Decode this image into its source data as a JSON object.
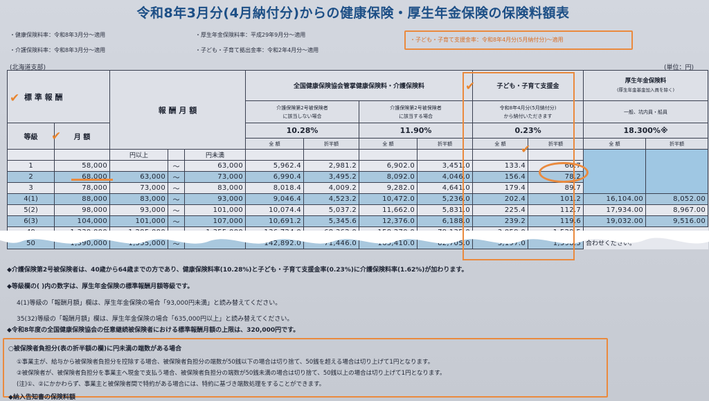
{
  "title": "令和8年3月分(4月納付分)からの健康保険・厚生年金保険の保険料額表",
  "rates": {
    "health": "・健康保険料率：令和8年3月分～適用",
    "care": "・介護保険料率：令和8年3月分～適用",
    "pension": "・厚生年金保険料率：平成29年9月分～適用",
    "childcontrib": "・子ども・子育て拠出金率：令和2年4月分～適用",
    "childsupport": "・子ども・子育て支援金率：令和8年4月分(5月納付分)～適用"
  },
  "branch": "(北海道支部)",
  "unit": "(単位：円)",
  "headers": {
    "standard": "標 準 報 酬",
    "grade": "等級",
    "monthly": "月 額",
    "remuneration": "報 酬 月 額",
    "health_group": "全国健康保険協会管掌健康保険料・介護保険料",
    "no_care_line1": "介護保険第2号被保険者",
    "no_care_line2": "に該当しない場合",
    "care_line1": "介護保険第2号被保険者",
    "care_line2": "に該当する場合",
    "rate_no_care": "10.28%",
    "rate_care": "11.90%",
    "child_group": "子ども・子育て支援金",
    "child_note1": "令和8年4月分(5月納付分)",
    "child_note2": "から納付いただきます",
    "rate_child": "0.23%",
    "pension_group": "厚生年金保険料",
    "pension_note": "(厚生年金基金加入員を除く)",
    "pension_sub": "一般、坑内員・船員",
    "rate_pension": "18.300%※",
    "full": "全 額",
    "half": "折半額",
    "yen_over": "円以上",
    "yen_under": "円未満",
    "tilde": "～"
  },
  "rows": [
    {
      "grade": "1",
      "monthly": "58,000",
      "lo": "",
      "hi": "63,000",
      "a": "5,962.4",
      "b": "2,981.2",
      "c": "6,902.0",
      "d": "3,451.0",
      "e": "133.4",
      "f": "66.7",
      "g": "",
      "h": ""
    },
    {
      "grade": "2",
      "monthly": "68,000",
      "lo": "63,000",
      "hi": "73,000",
      "a": "6,990.4",
      "b": "3,495.2",
      "c": "8,092.0",
      "d": "4,046.0",
      "e": "156.4",
      "f": "78.2",
      "g": "",
      "h": ""
    },
    {
      "grade": "3",
      "monthly": "78,000",
      "lo": "73,000",
      "hi": "83,000",
      "a": "8,018.4",
      "b": "4,009.2",
      "c": "9,282.0",
      "d": "4,641.0",
      "e": "179.4",
      "f": "89.7",
      "g": "",
      "h": ""
    },
    {
      "grade": "4(1)",
      "monthly": "88,000",
      "lo": "83,000",
      "hi": "93,000",
      "a": "9,046.4",
      "b": "4,523.2",
      "c": "10,472.0",
      "d": "5,236.0",
      "e": "202.4",
      "f": "101.2",
      "g": "16,104.00",
      "h": "8,052.00"
    },
    {
      "grade": "5(2)",
      "monthly": "98,000",
      "lo": "93,000",
      "hi": "101,000",
      "a": "10,074.4",
      "b": "5,037.2",
      "c": "11,662.0",
      "d": "5,831.0",
      "e": "225.4",
      "f": "112.7",
      "g": "17,934.00",
      "h": "8,967.00"
    },
    {
      "grade": "6(3)",
      "monthly": "104,000",
      "lo": "101,000",
      "hi": "107,000",
      "a": "10,691.2",
      "b": "5,345.6",
      "c": "12,376.0",
      "d": "6,188.0",
      "e": "239.2",
      "f": "119.6",
      "g": "19,032.00",
      "h": "9,516.00"
    }
  ],
  "tail_rows": [
    {
      "grade": "49",
      "monthly": "1,330,000",
      "lo": "1,295,000",
      "hi": "1,355,000",
      "a": "136,724.0",
      "b": "68,362.0",
      "c": "158,270.0",
      "d": "79,135.0",
      "e": "3,059.0",
      "f": "1,529.5"
    },
    {
      "grade": "50",
      "monthly": "1,390,000",
      "lo": "1,355,000",
      "hi": "",
      "a": "142,892.0",
      "b": "71,446.0",
      "c": "165,410.0",
      "d": "82,705.0",
      "e": "3,197.0",
      "f": "1,598.5"
    }
  ],
  "side_note": "合わせください。",
  "notes": [
    "◆介護保険第2号被保険者は、40歳から64歳までの方であり、健康保険料率(10.28%)と子ども・子育て支援金率(0.23%)に介護保険料率(1.62%)が加わります。",
    "◆等級欄の( )内の数字は、厚生年金保険の標準報酬月額等級です。",
    "4(1)等級の「報酬月額」欄は、厚生年金保険の場合「93,000円未満」と読み替えてください。",
    "35(32)等級の「報酬月額」欄は、厚生年金保険の場合「635,000円以上」と読み替えてください。",
    "◆令和8年度の全国健康保険協会の任意継続被保険者における標準報酬月額の上限は、320,000円です。"
  ],
  "box": {
    "heading": "○被保険者負担分(表の折半額の欄)に円未満の端数がある場合",
    "line1": "①事業主が、給与から被保険者負担分を控除する場合、被保険者負担分の端数が50銭以下の場合は切り捨て、50銭を超える場合は切り上げて1円となります。",
    "line2": "②被保険者が、被保険者負担分を事業主へ現金で支払う場合、被保険者負担分の端数が50銭未満の場合は切り捨て、50銭以上の場合は切り上げて1円となります。",
    "line3": "(注)①、②にかかわらず、事業主と被保険者間で特約がある場合には、特約に基づき端数処理をすることができます。",
    "line4": "◆納入告知書の保険料額"
  },
  "colors": {
    "accent": "#ea8a3e",
    "title": "#1d4f86",
    "highlight_row": "#a9c8de"
  }
}
